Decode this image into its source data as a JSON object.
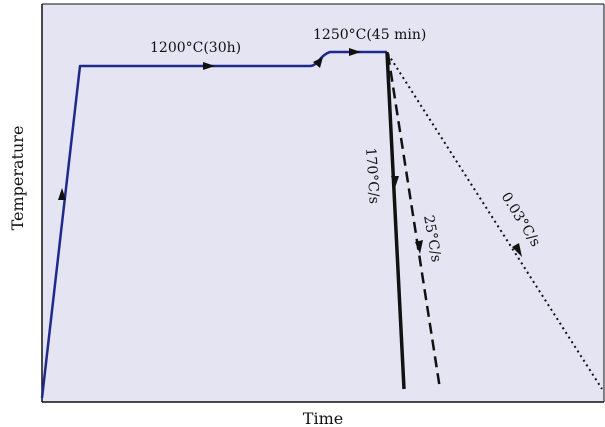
{
  "chart_data": {
    "type": "line",
    "xlabel": "Time",
    "ylabel": "Temperature",
    "grid": false,
    "annotations": {
      "hold_1": "1200°C(30h)",
      "hold_2": "1250°C(45 min)",
      "rate_fast": "170°C/s",
      "rate_mid": "25°C/s",
      "rate_slow": "0.03°C/s"
    },
    "series": [
      {
        "label": "170°C/s",
        "style": "solid"
      },
      {
        "label": "25°C/s",
        "style": "dashed"
      },
      {
        "label": "0.03°C/s",
        "style": "dotted"
      }
    ]
  },
  "colors": {
    "background": "#e4e4f3",
    "heating_line": "#1f2a8a",
    "quench_line": "#111111",
    "frame": "#111111"
  }
}
